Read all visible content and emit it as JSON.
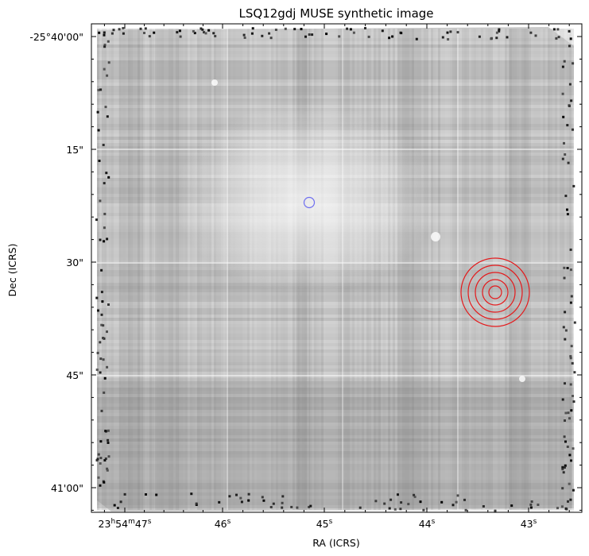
{
  "chart_data": {
    "type": "image",
    "title": "LSQ12gdj MUSE synthetic image",
    "xlabel": "RA (ICRS)",
    "ylabel": "Dec (ICRS)",
    "colormap": "gray",
    "x_ticks": [
      {
        "label": "23h54m47s",
        "parts": [
          "23",
          "h",
          "54",
          "m",
          "47",
          "s"
        ]
      },
      {
        "label": "46s",
        "parts": [
          "46",
          "s"
        ]
      },
      {
        "label": "45s",
        "parts": [
          "45",
          "s"
        ]
      },
      {
        "label": "44s",
        "parts": [
          "44",
          "s"
        ]
      },
      {
        "label": "43s",
        "parts": [
          "43",
          "s"
        ]
      }
    ],
    "y_ticks": [
      "-25°40'00\"",
      "15\"",
      "30\"",
      "45\"",
      "41'00\""
    ],
    "markers": [
      {
        "name": "blue-circle",
        "color": "#6f6ff0",
        "rings": 1
      },
      {
        "name": "red-concentric-circles",
        "color": "#e41a1c",
        "rings": 5
      }
    ]
  },
  "colors": {
    "background": "#ffffff",
    "axes": "#000000",
    "blue_marker": "#6f6ff0",
    "red_marker": "#e41a1c"
  }
}
